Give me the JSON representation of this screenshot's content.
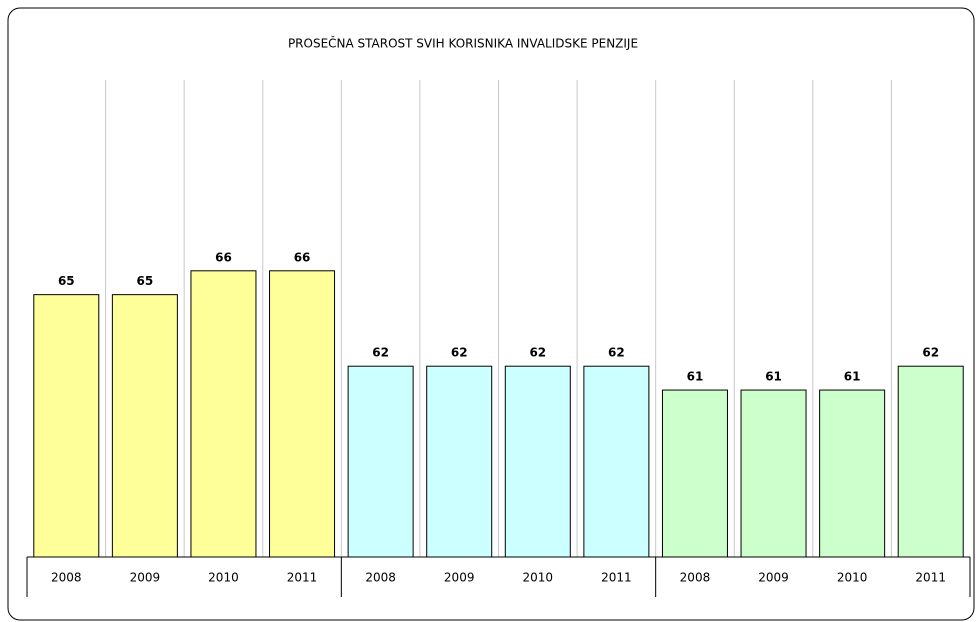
{
  "chart_data": {
    "type": "bar",
    "title": "PROSEČNA STAROST SVIH KORISNIKA INVALIDSKE PENZIJE",
    "categories": [
      "2008",
      "2009",
      "2010",
      "2011",
      "2008",
      "2009",
      "2010",
      "2011",
      "2008",
      "2009",
      "2010",
      "2011"
    ],
    "values": [
      65,
      65,
      66,
      66,
      62,
      62,
      62,
      62,
      61,
      61,
      61,
      62
    ],
    "colors": [
      "#ffff99",
      "#ffff99",
      "#ffff99",
      "#ffff99",
      "#ccffff",
      "#ccffff",
      "#ccffff",
      "#ccffff",
      "#ccffcc",
      "#ccffcc",
      "#ccffcc",
      "#ccffcc"
    ],
    "ylim": [
      54,
      74
    ]
  }
}
